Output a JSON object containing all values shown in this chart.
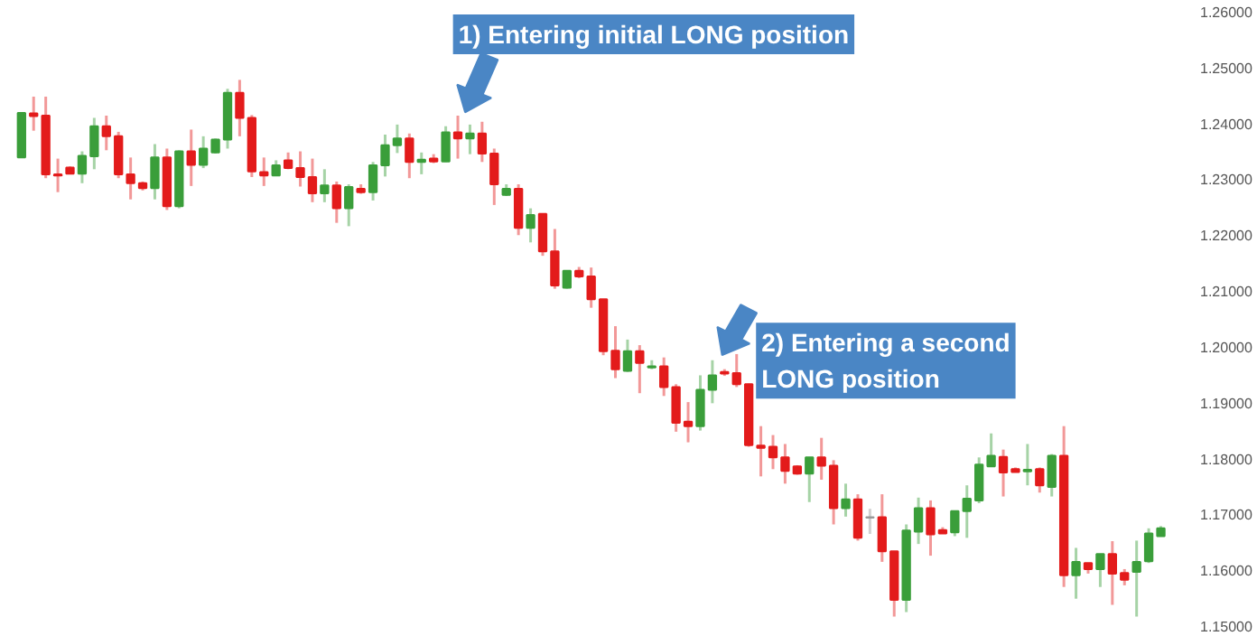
{
  "chart_data": {
    "type": "candlestick",
    "categories": [
      null,
      null,
      null,
      null,
      null,
      null,
      null,
      null,
      null,
      null,
      null,
      null,
      null,
      null,
      null,
      null,
      null,
      null,
      null,
      null,
      null,
      null,
      null,
      null,
      null,
      null,
      null,
      null,
      null,
      null,
      null,
      null,
      null,
      null,
      null,
      null,
      null,
      null,
      null,
      null,
      null,
      null,
      null,
      null,
      null,
      null,
      null,
      null,
      null,
      null,
      null,
      null,
      null,
      null,
      null,
      null,
      null,
      null,
      null,
      null,
      null,
      null,
      null,
      null,
      null,
      null,
      null,
      null,
      null,
      null,
      null,
      null,
      null,
      null,
      null,
      null,
      null,
      null,
      null,
      null,
      null,
      null,
      null,
      null,
      null,
      null,
      null,
      null,
      null,
      null,
      null,
      null,
      null,
      null,
      null
    ],
    "ohlc": [
      [
        1.2339,
        1.2419,
        1.2339,
        1.2419
      ],
      [
        1.2418,
        1.2448,
        1.2387,
        1.2413
      ],
      [
        1.2414,
        1.2448,
        1.2302,
        1.2309
      ],
      [
        1.2309,
        1.2337,
        1.2277,
        1.2307
      ],
      [
        1.2321,
        1.2323,
        1.2309,
        1.231
      ],
      [
        1.231,
        1.235,
        1.2293,
        1.2342
      ],
      [
        1.2341,
        1.241,
        1.2318,
        1.2395
      ],
      [
        1.2395,
        1.2414,
        1.2352,
        1.2377
      ],
      [
        1.2377,
        1.2385,
        1.2302,
        1.2309
      ],
      [
        1.2309,
        1.2339,
        1.2264,
        1.2293
      ],
      [
        1.2293,
        1.2296,
        1.228,
        1.2284
      ],
      [
        1.2284,
        1.2363,
        1.2264,
        1.2339
      ],
      [
        1.2339,
        1.2355,
        1.2245,
        1.2252
      ],
      [
        1.2252,
        1.2352,
        1.2248,
        1.235
      ],
      [
        1.235,
        1.2389,
        1.2288,
        1.2326
      ],
      [
        1.2326,
        1.2377,
        1.232,
        1.2355
      ],
      [
        1.2348,
        1.2373,
        1.2346,
        1.2371
      ],
      [
        1.2371,
        1.2462,
        1.2355,
        1.2455
      ],
      [
        1.2455,
        1.2478,
        1.2377,
        1.241
      ],
      [
        1.241,
        1.2415,
        1.2304,
        1.2314
      ],
      [
        1.2313,
        1.2339,
        1.2288,
        1.2307
      ],
      [
        1.2307,
        1.2334,
        1.2306,
        1.2325
      ],
      [
        1.2334,
        1.2348,
        1.2318,
        1.232
      ],
      [
        1.232,
        1.235,
        1.2287,
        1.2304
      ],
      [
        1.2304,
        1.2337,
        1.2259,
        1.2275
      ],
      [
        1.2275,
        1.2318,
        1.2259,
        1.2289
      ],
      [
        1.2289,
        1.2296,
        1.2222,
        1.2248
      ],
      [
        1.2248,
        1.2291,
        1.2216,
        1.2286
      ],
      [
        1.2283,
        1.2291,
        1.2274,
        1.2277
      ],
      [
        1.2277,
        1.2331,
        1.2262,
        1.2325
      ],
      [
        1.2325,
        1.238,
        1.2305,
        1.2361
      ],
      [
        1.2361,
        1.2398,
        1.2347,
        1.2373
      ],
      [
        1.2373,
        1.2382,
        1.2302,
        1.2331
      ],
      [
        1.2331,
        1.2348,
        1.2309,
        1.2335
      ],
      [
        1.2337,
        1.2345,
        1.2329,
        1.2332
      ],
      [
        1.2332,
        1.2395,
        1.2331,
        1.2384
      ],
      [
        1.2384,
        1.2414,
        1.2337,
        1.2373
      ],
      [
        1.2373,
        1.2398,
        1.2345,
        1.2382
      ],
      [
        1.2382,
        1.2403,
        1.2331,
        1.2346
      ],
      [
        1.2346,
        1.2355,
        1.2254,
        1.2291
      ],
      [
        1.2272,
        1.2291,
        1.227,
        1.2283
      ],
      [
        1.2283,
        1.2291,
        1.22,
        1.2213
      ],
      [
        1.2213,
        1.2248,
        1.2187,
        1.2236
      ],
      [
        1.2238,
        1.2239,
        1.2163,
        1.2171
      ],
      [
        1.2171,
        1.2211,
        1.2104,
        1.211
      ],
      [
        1.2106,
        1.2136,
        1.2104,
        1.2136
      ],
      [
        1.2136,
        1.2143,
        1.2123,
        1.2126
      ],
      [
        1.2126,
        1.2142,
        1.207,
        1.2085
      ],
      [
        1.2085,
        1.2085,
        1.1985,
        1.1992
      ],
      [
        1.1993,
        1.2037,
        1.1944,
        1.196
      ],
      [
        1.1957,
        1.2013,
        1.1955,
        1.1992
      ],
      [
        1.1992,
        1.2003,
        1.1917,
        1.1971
      ],
      [
        1.1963,
        1.1976,
        1.196,
        1.1965
      ],
      [
        1.1965,
        1.1981,
        1.1912,
        1.1928
      ],
      [
        1.1928,
        1.1933,
        1.1848,
        1.1864
      ],
      [
        1.1866,
        1.1901,
        1.1829,
        1.1858
      ],
      [
        1.1858,
        1.1949,
        1.185,
        1.1923
      ],
      [
        1.1923,
        1.1976,
        1.1899,
        1.1949
      ],
      [
        1.1955,
        1.196,
        1.1948,
        1.1952
      ],
      [
        1.1953,
        1.1987,
        1.1928,
        1.1933
      ],
      [
        1.1933,
        1.1934,
        1.1821,
        1.1824
      ],
      [
        1.1823,
        1.1858,
        1.1768,
        1.1819
      ],
      [
        1.1821,
        1.1842,
        1.1781,
        1.1802
      ],
      [
        1.1802,
        1.1826,
        1.1755,
        1.1778
      ],
      [
        1.1786,
        1.1788,
        1.1771,
        1.1773
      ],
      [
        1.1773,
        1.1802,
        1.1722,
        1.1802
      ],
      [
        1.1802,
        1.1837,
        1.1762,
        1.1787
      ],
      [
        1.1787,
        1.1797,
        1.1682,
        1.1711
      ],
      [
        1.1711,
        1.1755,
        1.1696,
        1.1727
      ],
      [
        1.1727,
        1.1736,
        1.1653,
        1.1658
      ],
      [
        1.1695,
        1.171,
        1.1665,
        1.1694
      ],
      [
        1.1695,
        1.1736,
        1.1615,
        1.1634
      ],
      [
        1.1634,
        1.1634,
        1.1517,
        1.1547
      ],
      [
        1.1547,
        1.1682,
        1.1525,
        1.1671
      ],
      [
        1.1669,
        1.173,
        1.1647,
        1.1711
      ],
      [
        1.1711,
        1.1725,
        1.1626,
        1.1664
      ],
      [
        1.1672,
        1.1677,
        1.1665,
        1.1666
      ],
      [
        1.1668,
        1.1706,
        1.1661,
        1.1706
      ],
      [
        1.1706,
        1.1752,
        1.1658,
        1.1728
      ],
      [
        1.1725,
        1.1802,
        1.172,
        1.1789
      ],
      [
        1.1786,
        1.1845,
        1.1786,
        1.1805
      ],
      [
        1.1803,
        1.1816,
        1.1732,
        1.1775
      ],
      [
        1.1781,
        1.1784,
        1.1775,
        1.1776
      ],
      [
        1.1777,
        1.1826,
        1.1752,
        1.178
      ],
      [
        1.1781,
        1.1784,
        1.1739,
        1.1752
      ],
      [
        1.1749,
        1.1808,
        1.1732,
        1.1805
      ],
      [
        1.1805,
        1.1858,
        1.157,
        1.1591
      ],
      [
        1.1591,
        1.164,
        1.1549,
        1.1615
      ],
      [
        1.1613,
        1.1613,
        1.1594,
        1.1602
      ],
      [
        1.1602,
        1.1629,
        1.157,
        1.1629
      ],
      [
        1.1629,
        1.1652,
        1.1538,
        1.1594
      ],
      [
        1.1595,
        1.1602,
        1.1573,
        1.1583
      ],
      [
        1.1597,
        1.1653,
        1.1517,
        1.1615
      ],
      [
        1.1616,
        1.1675,
        1.1613,
        1.1666
      ],
      [
        1.1661,
        1.1679,
        1.1661,
        1.1675
      ]
    ],
    "colors": [
      "#3a9e3a",
      "#e31b1b",
      "#e31b1b",
      "#e31b1b",
      "#e31b1b",
      "#3a9e3a",
      "#3a9e3a",
      "#e31b1b",
      "#e31b1b",
      "#e31b1b",
      "#e31b1b",
      "#3a9e3a",
      "#e31b1b",
      "#3a9e3a",
      "#e31b1b",
      "#3a9e3a",
      "#3a9e3a",
      "#3a9e3a",
      "#e31b1b",
      "#e31b1b",
      "#e31b1b",
      "#3a9e3a",
      "#e31b1b",
      "#e31b1b",
      "#e31b1b",
      "#3a9e3a",
      "#e31b1b",
      "#3a9e3a",
      "#e31b1b",
      "#3a9e3a",
      "#3a9e3a",
      "#3a9e3a",
      "#e31b1b",
      "#3a9e3a",
      "#e31b1b",
      "#3a9e3a",
      "#e31b1b",
      "#3a9e3a",
      "#e31b1b",
      "#e31b1b",
      "#3a9e3a",
      "#e31b1b",
      "#3a9e3a",
      "#e31b1b",
      "#e31b1b",
      "#3a9e3a",
      "#e31b1b",
      "#e31b1b",
      "#e31b1b",
      "#e31b1b",
      "#3a9e3a",
      "#e31b1b",
      "#3a9e3a",
      "#e31b1b",
      "#e31b1b",
      "#e31b1b",
      "#3a9e3a",
      "#3a9e3a",
      "#e31b1b",
      "#e31b1b",
      "#e31b1b",
      "#e31b1b",
      "#e31b1b",
      "#e31b1b",
      "#e31b1b",
      "#3a9e3a",
      "#e31b1b",
      "#e31b1b",
      "#3a9e3a",
      "#e31b1b",
      "#999999",
      "#e31b1b",
      "#e31b1b",
      "#3a9e3a",
      "#3a9e3a",
      "#e31b1b",
      "#e31b1b",
      "#3a9e3a",
      "#3a9e3a",
      "#3a9e3a",
      "#3a9e3a",
      "#e31b1b",
      "#e31b1b",
      "#3a9e3a",
      "#e31b1b",
      "#3a9e3a",
      "#e31b1b",
      "#3a9e3a",
      "#e31b1b",
      "#3a9e3a",
      "#e31b1b",
      "#e31b1b",
      "#3a9e3a",
      "#3a9e3a",
      "#3a9e3a"
    ],
    "ylim": [
      1.15,
      1.26
    ],
    "yticks": [
      {
        "value": 1.15,
        "label": "1.15000"
      },
      {
        "value": 1.16,
        "label": "1.16000"
      },
      {
        "value": 1.17,
        "label": "1.17000"
      },
      {
        "value": 1.18,
        "label": "1.18000"
      },
      {
        "value": 1.19,
        "label": "1.19000"
      },
      {
        "value": 1.2,
        "label": "1.20000"
      },
      {
        "value": 1.21,
        "label": "1.21000"
      },
      {
        "value": 1.22,
        "label": "1.22000"
      },
      {
        "value": 1.23,
        "label": "1.23000"
      },
      {
        "value": 1.24,
        "label": "1.24000"
      },
      {
        "value": 1.25,
        "label": "1.25000"
      },
      {
        "value": 1.26,
        "label": "1.26000"
      }
    ],
    "tick_labels": "y",
    "grid": false,
    "annotations": [
      "1) Entering initial LONG position",
      "2) Entering a second LONG position"
    ]
  }
}
